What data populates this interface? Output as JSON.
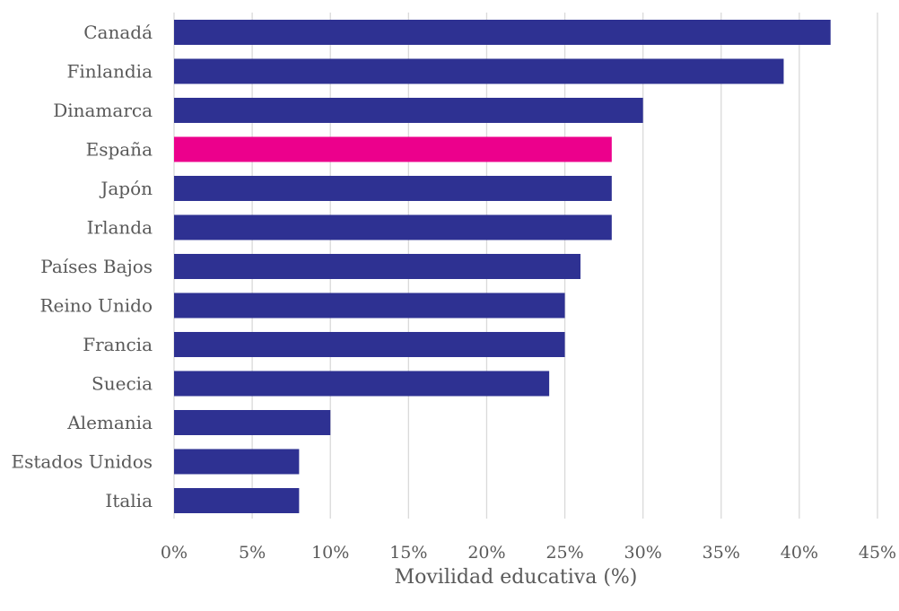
{
  "chart_data": {
    "type": "bar",
    "orientation": "horizontal",
    "title": "",
    "xlabel": "Movilidad educativa (%)",
    "ylabel": "",
    "xlim": [
      0,
      45
    ],
    "ticks": [
      0,
      5,
      10,
      15,
      20,
      25,
      30,
      35,
      40,
      45
    ],
    "tick_labels": [
      "0%",
      "5%",
      "10%",
      "15%",
      "20%",
      "25%",
      "30%",
      "35%",
      "40%",
      "45%"
    ],
    "grid": true,
    "legend": "none",
    "categories": [
      "Canadá",
      "Finlandia",
      "Dinamarca",
      "España",
      "Japón",
      "Irlanda",
      "Países Bajos",
      "Reino Unido",
      "Francia",
      "Suecia",
      "Alemania",
      "Estados Unidos",
      "Italia"
    ],
    "values": [
      42,
      39,
      30,
      28,
      28,
      28,
      26,
      25,
      25,
      24,
      10,
      8,
      8
    ],
    "highlight": "España",
    "colors": {
      "bar": "#2e3192",
      "highlight": "#ec008c",
      "grid": "#d9d9d9",
      "text": "#595959"
    }
  }
}
